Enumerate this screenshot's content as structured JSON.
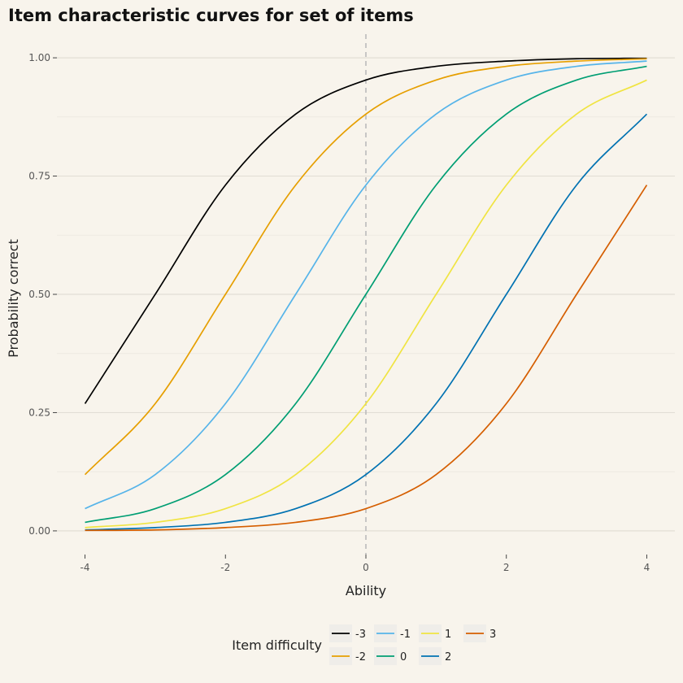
{
  "chart_data": {
    "type": "line",
    "title": "Item characteristic curves for set of items",
    "xlabel": "Ability",
    "ylabel": "Probability correct",
    "xlim": [
      -4,
      4
    ],
    "ylim": [
      0,
      1
    ],
    "x_ticks": [
      -4,
      -2,
      0,
      2,
      4
    ],
    "y_ticks": [
      0,
      0.25,
      0.5,
      0.75,
      1
    ],
    "x_tick_labels": [
      "-4",
      "-2",
      "0",
      "2",
      "4"
    ],
    "y_tick_labels": [
      "0.00",
      "0.25",
      "0.50",
      "0.75",
      "1.00"
    ],
    "reference_line": {
      "x": 0,
      "style": "dashed",
      "color": "#bbbbbb"
    },
    "grid": true,
    "legend": {
      "title": "Item difficulty",
      "placement": "bottom"
    },
    "series": [
      {
        "name": "-3",
        "color": "#000000",
        "x": [
          -4,
          -3,
          -2,
          -1,
          0,
          1,
          2,
          3,
          4
        ],
        "y": [
          0.269,
          0.5,
          0.731,
          0.881,
          0.953,
          0.982,
          0.993,
          0.998,
          0.999
        ]
      },
      {
        "name": "-2",
        "color": "#e69f00",
        "x": [
          -4,
          -3,
          -2,
          -1,
          0,
          1,
          2,
          3,
          4
        ],
        "y": [
          0.119,
          0.269,
          0.5,
          0.731,
          0.881,
          0.953,
          0.982,
          0.993,
          0.998
        ]
      },
      {
        "name": "-1",
        "color": "#56b4e9",
        "x": [
          -4,
          -3,
          -2,
          -1,
          0,
          1,
          2,
          3,
          4
        ],
        "y": [
          0.047,
          0.119,
          0.269,
          0.5,
          0.731,
          0.881,
          0.953,
          0.982,
          0.993
        ]
      },
      {
        "name": "0",
        "color": "#009e73",
        "x": [
          -4,
          -3,
          -2,
          -1,
          0,
          1,
          2,
          3,
          4
        ],
        "y": [
          0.018,
          0.047,
          0.119,
          0.269,
          0.5,
          0.731,
          0.881,
          0.953,
          0.982
        ]
      },
      {
        "name": "1",
        "color": "#f0e442",
        "x": [
          -4,
          -3,
          -2,
          -1,
          0,
          1,
          2,
          3,
          4
        ],
        "y": [
          0.007,
          0.018,
          0.047,
          0.119,
          0.269,
          0.5,
          0.731,
          0.881,
          0.953
        ]
      },
      {
        "name": "2",
        "color": "#0072b2",
        "x": [
          -4,
          -3,
          -2,
          -1,
          0,
          1,
          2,
          3,
          4
        ],
        "y": [
          0.002,
          0.007,
          0.018,
          0.047,
          0.119,
          0.269,
          0.5,
          0.731,
          0.881
        ]
      },
      {
        "name": "3",
        "color": "#d55e00",
        "x": [
          -4,
          -3,
          -2,
          -1,
          0,
          1,
          2,
          3,
          4
        ],
        "y": [
          0.001,
          0.002,
          0.007,
          0.018,
          0.047,
          0.119,
          0.269,
          0.5,
          0.731
        ]
      }
    ]
  }
}
